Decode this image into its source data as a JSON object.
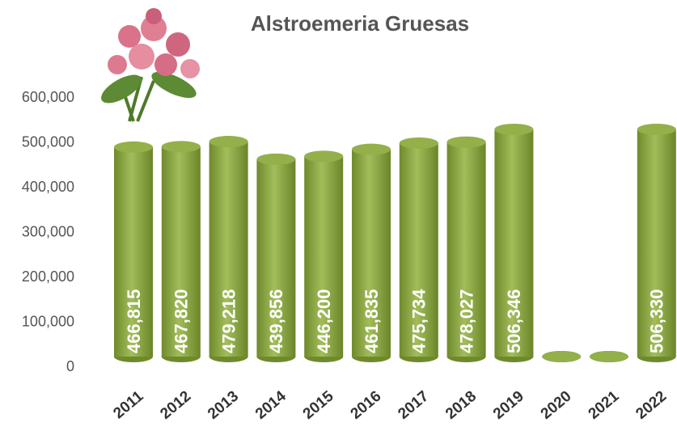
{
  "chart_data": {
    "type": "cylinder-bar",
    "title": "Alstroemeria Gruesas",
    "categories": [
      "2011",
      "2012",
      "2013",
      "2014",
      "2015",
      "2016",
      "2017",
      "2018",
      "2019",
      "2020",
      "2021",
      "2022"
    ],
    "values": [
      466815,
      467820,
      479218,
      439856,
      446200,
      461835,
      475734,
      478027,
      506346,
      0,
      0,
      506330
    ],
    "value_labels": [
      "466,815",
      "467,820",
      "479,218",
      "439,856",
      "446,200",
      "461,835",
      "475,734",
      "478,027",
      "506,346",
      null,
      null,
      "506,330"
    ],
    "color": "#8aa83e",
    "ylim": [
      0,
      600000
    ],
    "yticks": [
      {
        "value": 0,
        "label": "0"
      },
      {
        "value": 100000,
        "label": "100,000"
      },
      {
        "value": 200000,
        "label": "200,000"
      },
      {
        "value": 300000,
        "label": "300,000"
      },
      {
        "value": 400000,
        "label": "400,000"
      },
      {
        "value": 500000,
        "label": "500,000"
      },
      {
        "value": 600000,
        "label": "600,000"
      }
    ],
    "grid": false
  }
}
